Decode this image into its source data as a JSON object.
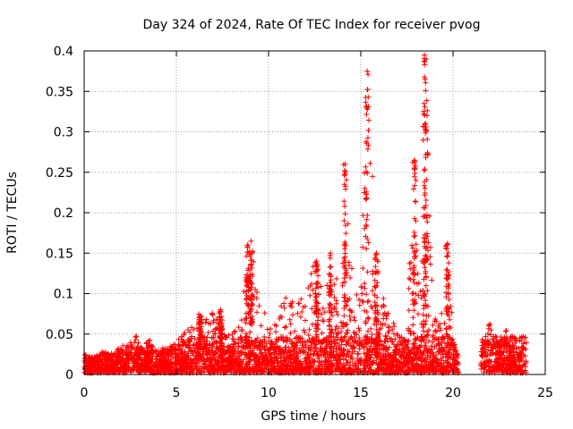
{
  "chart_data": {
    "type": "scatter",
    "title": "Day 324 of 2024, Rate Of TEC Index for receiver pvog",
    "xlabel": "GPS time / hours",
    "ylabel": "ROTI / TECUs",
    "xlim": [
      0,
      25
    ],
    "ylim": [
      0,
      0.4
    ],
    "xticks": [
      0,
      5,
      10,
      15,
      20,
      25
    ],
    "yticks": [
      0,
      0.05,
      0.1,
      0.15,
      0.2,
      0.25,
      0.3,
      0.35,
      0.4
    ],
    "grid": true,
    "marker": "+",
    "series": [
      {
        "name": "ROTI",
        "color": "#ff0000",
        "envelope_x": [
          0,
          0.5,
          1,
          1.5,
          2,
          2.5,
          2.8,
          3,
          3.5,
          4,
          4.5,
          5,
          5.5,
          6,
          6.2,
          6.5,
          7,
          7.5,
          8,
          8.5,
          8.8,
          9,
          9.5,
          10,
          10.5,
          11,
          11.5,
          12,
          12.5,
          13,
          13.2,
          13.5,
          14,
          14.2,
          14.5,
          15,
          15.3,
          15.5,
          15.8,
          16,
          16.5,
          17,
          17.5,
          17.8,
          18,
          18.3,
          18.5,
          18.8,
          19,
          19.5,
          19.7,
          20,
          20.3,
          21.5,
          22,
          22.5,
          23,
          23.5,
          24
        ],
        "envelope_y": [
          0.02,
          0.018,
          0.025,
          0.022,
          0.03,
          0.035,
          0.045,
          0.03,
          0.04,
          0.025,
          0.03,
          0.035,
          0.05,
          0.06,
          0.07,
          0.065,
          0.075,
          0.05,
          0.045,
          0.06,
          0.155,
          0.16,
          0.09,
          0.06,
          0.075,
          0.095,
          0.08,
          0.1,
          0.14,
          0.09,
          0.145,
          0.11,
          0.12,
          0.26,
          0.14,
          0.1,
          0.37,
          0.36,
          0.15,
          0.11,
          0.07,
          0.05,
          0.04,
          0.26,
          0.2,
          0.12,
          0.395,
          0.15,
          0.08,
          0.07,
          0.16,
          0.04,
          0.02,
          0.035,
          0.06,
          0.04,
          0.055,
          0.045,
          0.06
        ],
        "gaps": [
          [
            20.3,
            21.5
          ]
        ]
      }
    ]
  }
}
